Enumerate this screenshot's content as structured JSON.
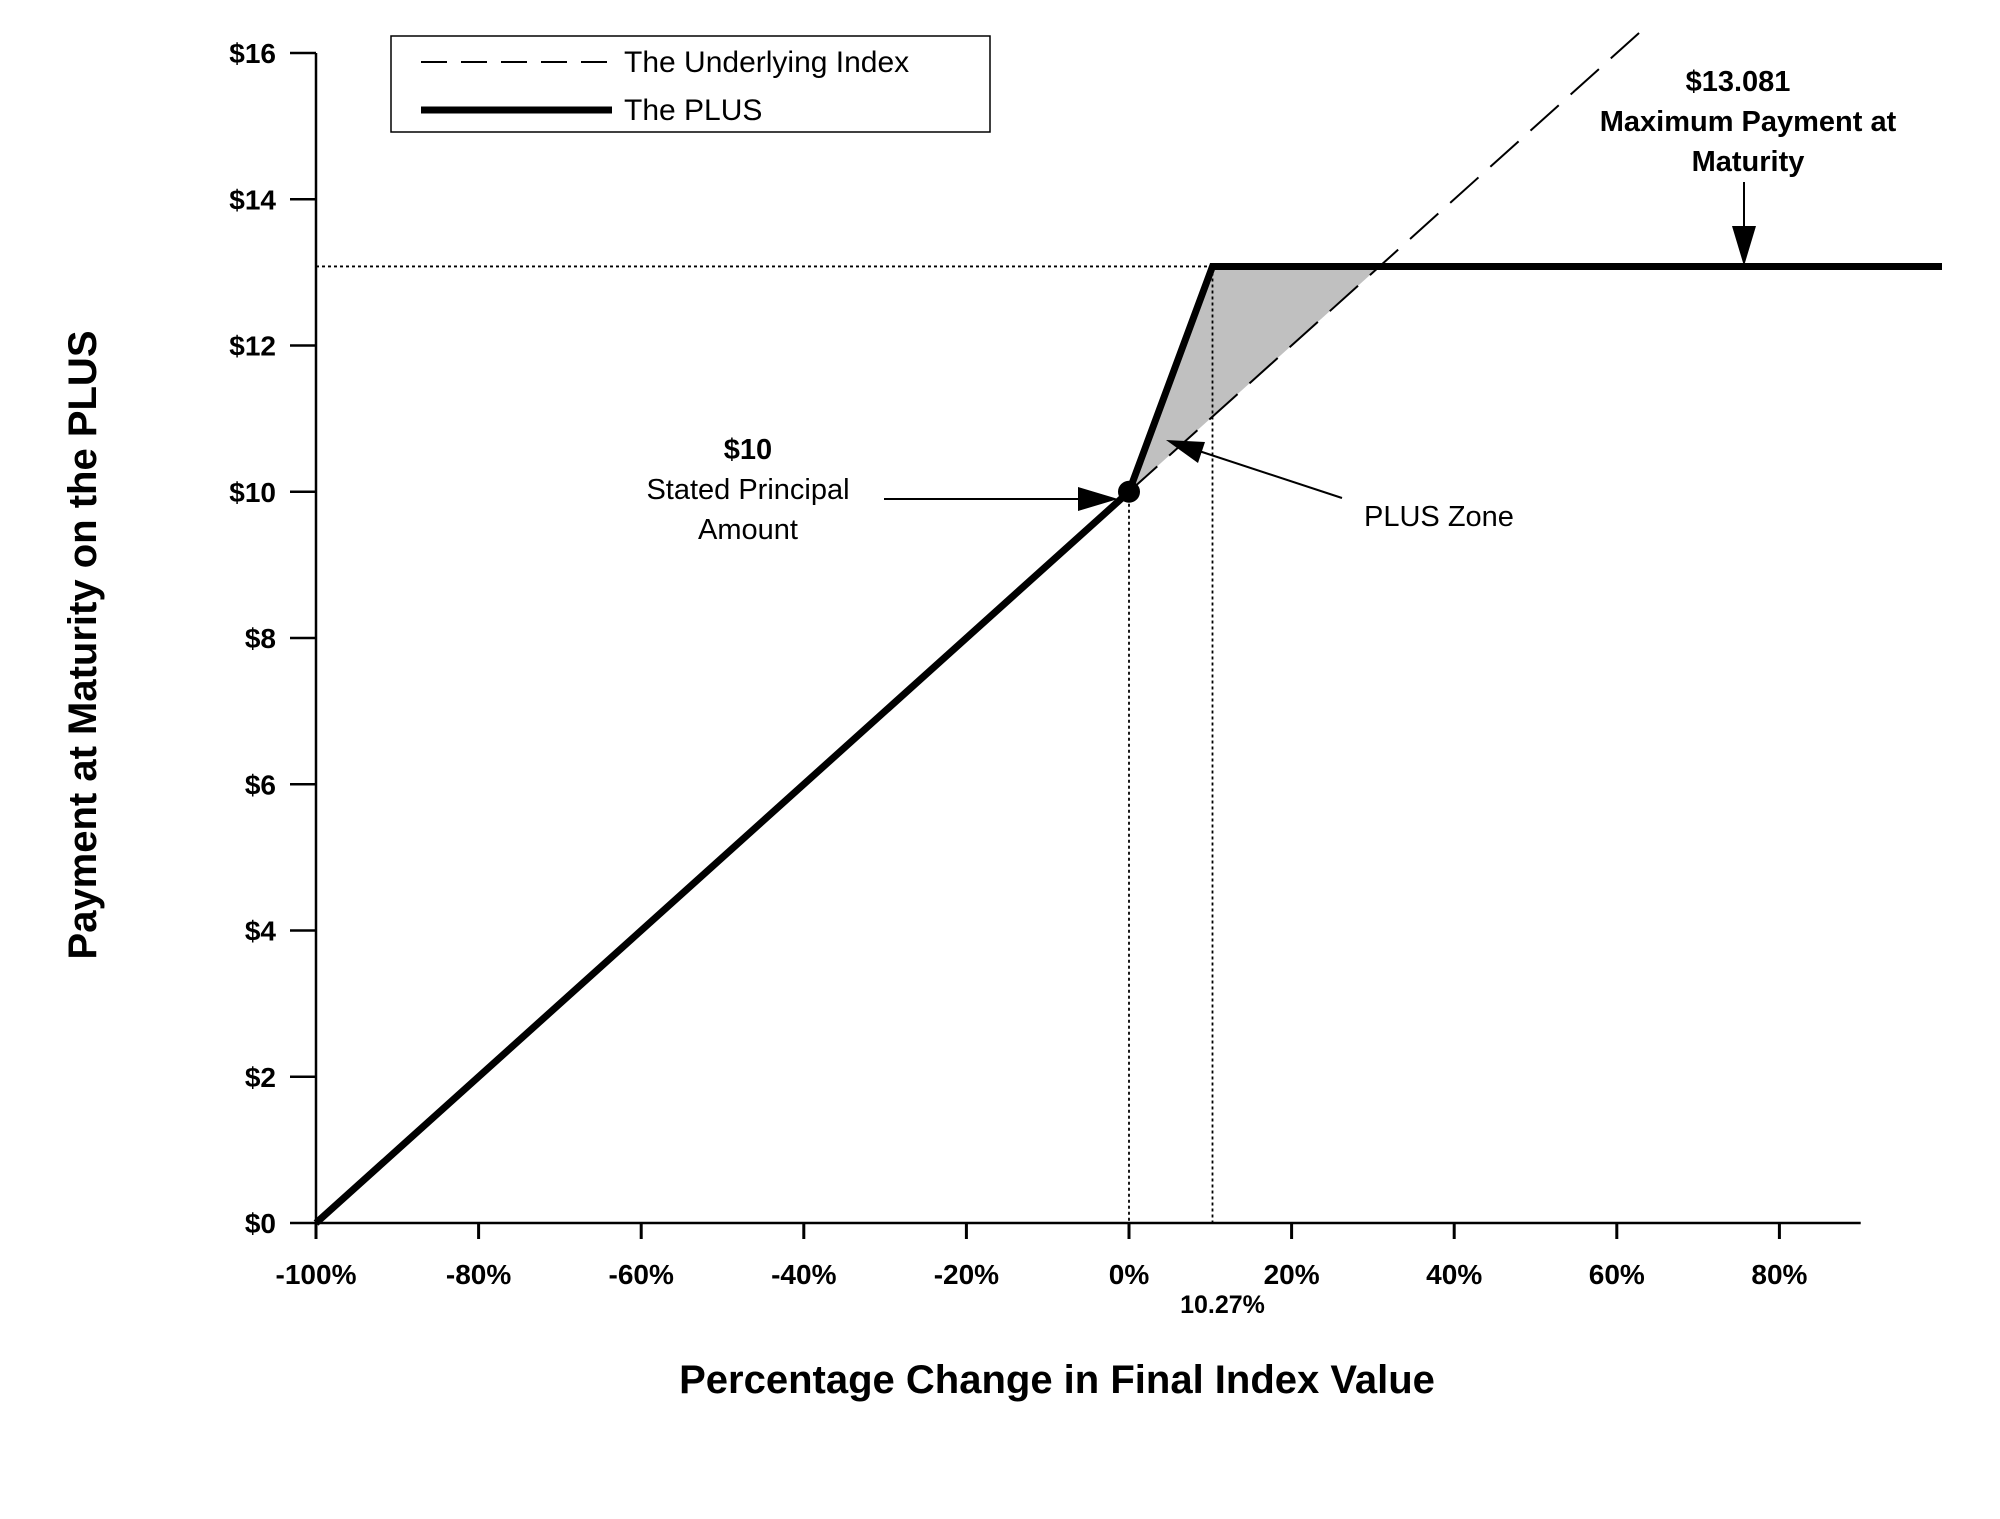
{
  "chart_data": {
    "type": "line",
    "title": "",
    "xlabel": "Percentage Change in Final Index Value",
    "ylabel": "Payment at Maturity on the  PLUS",
    "xlim": [
      -100,
      90
    ],
    "ylim": [
      0,
      16
    ],
    "x_ticks": [
      -100,
      -80,
      -60,
      -40,
      -20,
      0,
      20,
      40,
      60,
      80
    ],
    "x_tick_labels": [
      "-100%",
      "-80%",
      "-60%",
      "-40%",
      "-20%",
      "0%",
      "20%",
      "40%",
      "60%",
      "80%"
    ],
    "y_ticks": [
      0,
      2,
      4,
      6,
      8,
      10,
      12,
      14,
      16
    ],
    "y_tick_labels": [
      "$0",
      "$2",
      "$4",
      "$6",
      "$8",
      "$10",
      "$12",
      "$14",
      "$16"
    ],
    "series": [
      {
        "name": "The Underlying Index",
        "style": "dashed",
        "x": [
          0,
          63
        ],
        "y": [
          10,
          16.3
        ]
      },
      {
        "name": "The PLUS",
        "style": "solid",
        "x": [
          -100,
          0,
          10.27,
          100
        ],
        "y": [
          0,
          10,
          13.081,
          13.081
        ]
      }
    ],
    "shaded_region": {
      "label": "PLUS Zone",
      "x": [
        0,
        10.27,
        30.81
      ],
      "y": [
        10,
        13.081,
        13.081
      ],
      "color": "#c0c0c0"
    },
    "reference_lines": {
      "cap_value": 13.081,
      "cap_x": 10.27,
      "principal_x": 0
    },
    "special_tick_label": "10.27%",
    "annotations": {
      "principal_value": "$10",
      "principal_line1": "Stated Principal",
      "principal_line2": "Amount",
      "max_value": "$13.081",
      "max_line1": "Maximum Payment at",
      "max_line2": "Maturity",
      "zone": "PLUS Zone"
    },
    "legend": {
      "position": "top-left",
      "entries": [
        "The Underlying Index",
        "The PLUS"
      ]
    }
  },
  "colors": {
    "line": "#000000",
    "shade": "#c0c0c0",
    "background": "#ffffff"
  }
}
